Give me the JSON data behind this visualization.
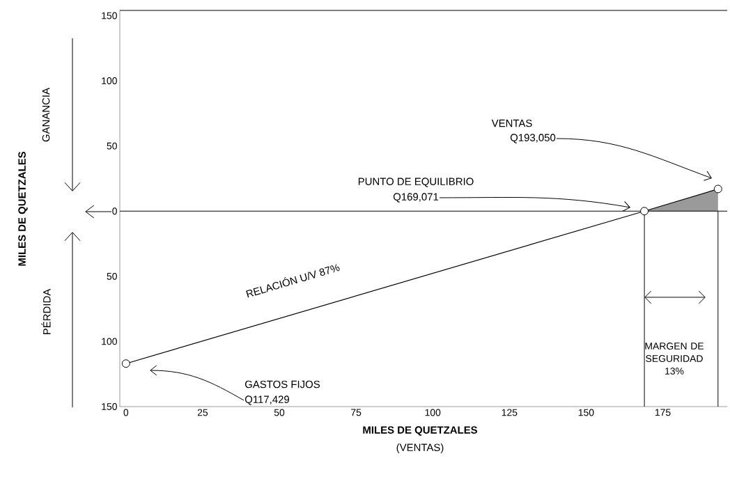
{
  "chart_data": {
    "type": "line",
    "xlabel": "MILES DE QUETZALES",
    "xlim": [
      -2,
      196
    ],
    "ylim": [
      -150,
      154
    ],
    "xticks": [
      0,
      25,
      50,
      75,
      100,
      125,
      150,
      175
    ],
    "yticks": [
      {
        "value": -150,
        "label": "150"
      },
      {
        "value": -100,
        "label": "100"
      },
      {
        "value": -50,
        "label": "50"
      },
      0,
      50,
      100,
      150
    ],
    "series": [
      {
        "color": "#000000",
        "marker": "circle",
        "x": [
          0,
          169,
          193
        ],
        "values": [
          -117,
          0,
          17
        ]
      },
      {
        "type": "area",
        "color": "#9a9a9a",
        "x": [
          169,
          193
        ],
        "values": [
          0,
          17
        ]
      }
    ],
    "ref_lines": [
      {
        "axis": "y",
        "value": 0
      },
      {
        "axis": "x",
        "value": 169
      },
      {
        "axis": "x",
        "value": 193
      }
    ],
    "annotations": [
      "VENTAS",
      "Q193,050",
      "PUNTO DE EQUILIBRIO",
      "Q169,071",
      "GASTOS FIJOS",
      "Q117,429",
      "RELACIÓN U/V 87%",
      "MARGEN DE SEGURIDAD 13%",
      "GANANCIA",
      "PÉRDIDA",
      "(VENTAS)",
      "MILES DE QUETZALES"
    ]
  }
}
